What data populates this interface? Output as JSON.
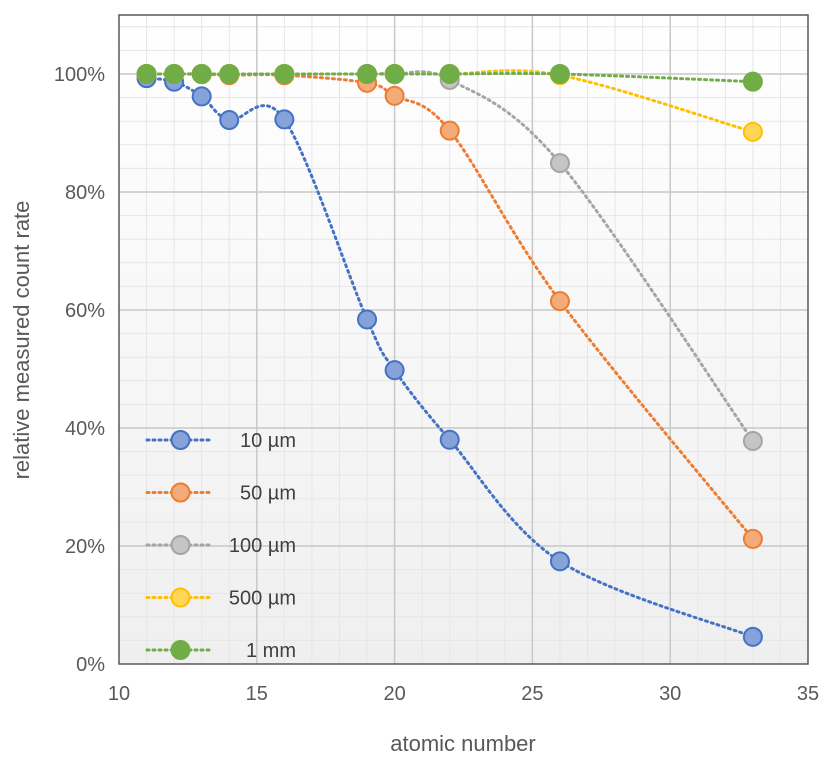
{
  "chart_data": {
    "type": "scatter",
    "xlabel": "atomic number",
    "ylabel": "relative measured count rate",
    "xlim": [
      10,
      35
    ],
    "ylim": [
      0,
      1.1
    ],
    "x_ticks": [
      10,
      15,
      20,
      25,
      30,
      35
    ],
    "y_ticks": [
      0,
      0.2,
      0.4,
      0.6,
      0.8,
      1.0
    ],
    "y_tick_format": "percent",
    "grid": true,
    "minor_grid": true,
    "legend_position": "inside lower-left",
    "line_style": "dotted smoothed",
    "series": [
      {
        "name": "10 µm",
        "color": "#4472C4",
        "x": [
          11,
          12,
          13,
          14,
          16,
          19,
          20,
          22,
          26,
          33
        ],
        "y": [
          0.993,
          0.987,
          0.962,
          0.922,
          0.923,
          0.584,
          0.498,
          0.38,
          0.174,
          0.046
        ]
      },
      {
        "name": "50 µm",
        "color": "#ED7D31",
        "x": [
          11,
          12,
          13,
          14,
          16,
          19,
          20,
          22,
          26,
          33
        ],
        "y": [
          1.0,
          1.0,
          1.0,
          0.998,
          0.998,
          0.985,
          0.963,
          0.904,
          0.615,
          0.212
        ]
      },
      {
        "name": "100 µm",
        "color": "#A5A5A5",
        "x": [
          11,
          12,
          13,
          14,
          16,
          19,
          20,
          22,
          26,
          33
        ],
        "y": [
          1.0,
          1.0,
          1.0,
          1.0,
          1.0,
          1.0,
          1.0,
          0.99,
          0.849,
          0.378
        ]
      },
      {
        "name": "500 µm",
        "color": "#FFC000",
        "x": [
          11,
          12,
          13,
          14,
          16,
          19,
          20,
          22,
          26,
          33
        ],
        "y": [
          1.0,
          1.0,
          1.0,
          1.0,
          1.0,
          1.0,
          1.0,
          1.0,
          0.998,
          0.902
        ]
      },
      {
        "name": "1 mm",
        "color": "#70AD47",
        "x": [
          11,
          12,
          13,
          14,
          16,
          19,
          20,
          22,
          26,
          33
        ],
        "y": [
          1.0,
          1.0,
          1.0,
          1.0,
          1.0,
          1.0,
          1.0,
          1.0,
          1.0,
          0.987
        ]
      }
    ]
  }
}
